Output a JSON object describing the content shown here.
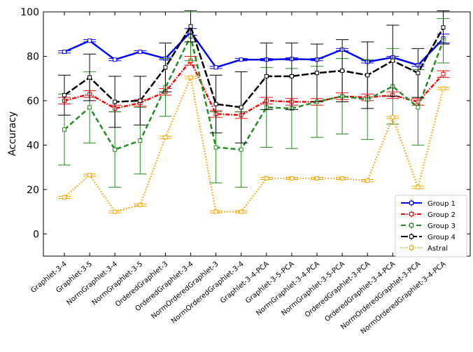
{
  "chart_data": {
    "type": "line",
    "title": "",
    "xlabel": "",
    "ylabel": "Accuracy",
    "ylim": [
      -10,
      100
    ],
    "yticks": [
      0,
      20,
      40,
      60,
      80,
      100
    ],
    "legend_position": "bottom-right",
    "grid": false,
    "categories": [
      "Graphlet-3-4",
      "Graphlet-3-5",
      "NormGraphlet-3-4",
      "NormGraphlet-3-5",
      "OrderedGraphlet-3",
      "OrderedGraphlet-3-4",
      "NormOrderedGraphlet-3",
      "NormOrderedGraphlet-3-4",
      "Graphlet-3-4-PCA",
      "Graphlet-3-5-PCA",
      "NormGraphlet-3-4-PCA",
      "NormGraphlet-3-5-PCA",
      "OrderedGraphlet-3-PCA",
      "OrderedGraphlet-3-4-PCA",
      "NormOrderedGraphlet-3-PCA",
      "NormOrderedGraphlet-3-4-PCA"
    ],
    "series": [
      {
        "name": "Group 1",
        "color": "#0000ff",
        "dash": "solid",
        "values": [
          82,
          87,
          78.5,
          82,
          79,
          91,
          75,
          78.5,
          78.5,
          78.8,
          78.5,
          83,
          77.5,
          79.5,
          76,
          88
        ],
        "errors": [
          0.5,
          0.5,
          0.5,
          0.5,
          0.5,
          1.5,
          0.5,
          0.5,
          0.5,
          0.5,
          0.5,
          0.5,
          0.5,
          0.5,
          0.5,
          2
        ]
      },
      {
        "name": "Group 2",
        "color": "#ff0000",
        "dash": "dashdot",
        "values": [
          60,
          63,
          56.5,
          59,
          64,
          78,
          54,
          53.5,
          60,
          59.5,
          59.5,
          62,
          61.5,
          62.5,
          59.5,
          72
        ],
        "errors": [
          1.5,
          1.5,
          1.5,
          1.5,
          1.5,
          2,
          1.5,
          1.5,
          1.5,
          1.5,
          1.5,
          1.5,
          1.5,
          1.5,
          1.5,
          1.5
        ]
      },
      {
        "name": "Group 3",
        "color": "#228b22",
        "dash": "dashed",
        "values": [
          47,
          57,
          38,
          42,
          66,
          89,
          39,
          38,
          57,
          56.5,
          59.5,
          62,
          60.5,
          66.5,
          57,
          87
        ],
        "errors": [
          16,
          16,
          17,
          15,
          13,
          11,
          16,
          17,
          18,
          18,
          16,
          17,
          18,
          17,
          17,
          10
        ]
      },
      {
        "name": "Group 4",
        "color": "#000000",
        "dash": "longdash",
        "values": [
          62.5,
          70.5,
          59.5,
          60,
          75,
          93.5,
          58.5,
          57,
          71,
          71,
          72.5,
          73.5,
          71.5,
          78,
          72.5,
          93
        ],
        "errors": [
          9,
          10.5,
          11.5,
          11,
          11,
          7,
          13,
          16,
          15,
          15,
          13,
          14,
          15,
          16,
          11,
          7.5
        ]
      },
      {
        "name": "Astral",
        "color": "#ffa500",
        "dash": "dotted",
        "values": [
          16.5,
          26.5,
          10,
          13,
          43.5,
          70.5,
          10,
          10,
          25,
          25,
          25,
          25,
          24,
          52.5,
          21,
          65.5
        ],
        "errors": [
          0.5,
          0.5,
          0.5,
          0.5,
          0.5,
          0.5,
          0.5,
          0.5,
          0.5,
          0.5,
          0.5,
          0.5,
          0.5,
          0.5,
          0.5,
          0.5
        ]
      }
    ]
  }
}
